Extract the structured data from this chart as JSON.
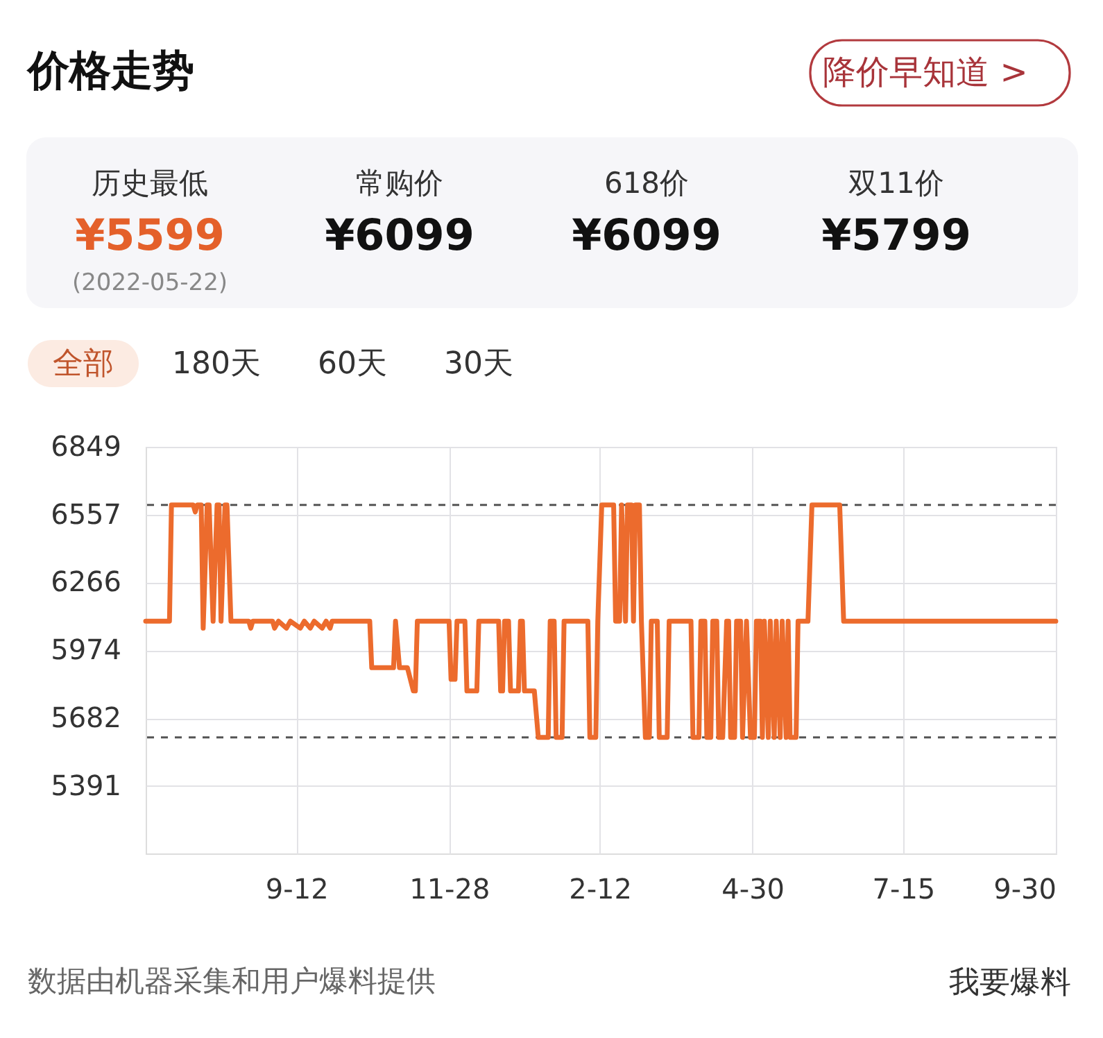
{
  "chart_data": {
    "type": "line",
    "title": "价格走势",
    "color": "#ec6b2d",
    "x": [
      "2021-06-28",
      "2021-07-10",
      "2021-07-11",
      "2021-07-22",
      "2021-07-23",
      "2021-07-24",
      "2021-07-26",
      "2021-07-27",
      "2021-07-29",
      "2021-07-30",
      "2021-08-01",
      "2021-08-03",
      "2021-08-04",
      "2021-08-05",
      "2021-08-07",
      "2021-08-08",
      "2021-08-10",
      "2021-08-19",
      "2021-08-20",
      "2021-08-21",
      "2021-08-31",
      "2021-09-01",
      "2021-09-03",
      "2021-09-07",
      "2021-09-09",
      "2021-09-14",
      "2021-09-16",
      "2021-09-19",
      "2021-09-21",
      "2021-09-25",
      "2021-09-27",
      "2021-09-29",
      "2021-09-30",
      "2021-10-19",
      "2021-10-20",
      "2021-10-31",
      "2021-11-01",
      "2021-11-03",
      "2021-11-07",
      "2021-11-10",
      "2021-11-11",
      "2021-11-12",
      "2021-11-28",
      "2021-11-29",
      "2021-12-01",
      "2021-12-02",
      "2021-12-06",
      "2021-12-07",
      "2021-12-12",
      "2021-12-13",
      "2021-12-23",
      "2021-12-24",
      "2021-12-25",
      "2021-12-26",
      "2021-12-28",
      "2021-12-29",
      "2022-01-02",
      "2022-01-03",
      "2022-01-04",
      "2022-01-05",
      "2022-01-10",
      "2022-01-12",
      "2022-01-17",
      "2022-01-18",
      "2022-01-20",
      "2022-01-21",
      "2022-01-24",
      "2022-01-25",
      "2022-02-06",
      "2022-02-07",
      "2022-02-10",
      "2022-02-11",
      "2022-02-13",
      "2022-02-19",
      "2022-02-20",
      "2022-02-22",
      "2022-02-23",
      "2022-02-25",
      "2022-02-26",
      "2022-02-28",
      "2022-03-01",
      "2022-03-02",
      "2022-03-04",
      "2022-03-05",
      "2022-03-07",
      "2022-03-09",
      "2022-03-10",
      "2022-03-13",
      "2022-03-14",
      "2022-03-18",
      "2022-03-19",
      "2022-03-30",
      "2022-03-31",
      "2022-04-03",
      "2022-04-04",
      "2022-04-06",
      "2022-04-07",
      "2022-04-09",
      "2022-04-10",
      "2022-04-12",
      "2022-04-13",
      "2022-04-15",
      "2022-04-17",
      "2022-04-18",
      "2022-04-19",
      "2022-04-21",
      "2022-04-22",
      "2022-04-24",
      "2022-04-25",
      "2022-04-27",
      "2022-04-29",
      "2022-05-01",
      "2022-05-02",
      "2022-05-04",
      "2022-05-05",
      "2022-05-06",
      "2022-05-08",
      "2022-05-09",
      "2022-05-11",
      "2022-05-12",
      "2022-05-14",
      "2022-05-15",
      "2022-05-17",
      "2022-05-18",
      "2022-05-19",
      "2022-05-22",
      "2022-05-23",
      "2022-05-28",
      "2022-05-30",
      "2022-06-13",
      "2022-06-15",
      "2022-09-30"
    ],
    "values": [
      6099,
      6099,
      6599,
      6599,
      6569,
      6599,
      6599,
      6069,
      6599,
      6599,
      6099,
      6599,
      6599,
      6099,
      6599,
      6599,
      6099,
      6099,
      6069,
      6099,
      6099,
      6069,
      6099,
      6069,
      6099,
      6069,
      6099,
      6069,
      6099,
      6069,
      6099,
      6069,
      6099,
      6099,
      5899,
      5899,
      6099,
      5899,
      5899,
      5799,
      5799,
      6099,
      6099,
      5849,
      5849,
      6099,
      6099,
      5799,
      5799,
      6099,
      6099,
      5799,
      5799,
      6099,
      6099,
      5799,
      5799,
      6099,
      6099,
      5799,
      5799,
      5599,
      5599,
      6099,
      6099,
      5599,
      5599,
      6099,
      6099,
      5599,
      5599,
      6099,
      6599,
      6599,
      6099,
      6099,
      6599,
      6099,
      6599,
      6599,
      6099,
      6599,
      6599,
      6099,
      5599,
      5599,
      6099,
      6099,
      5599,
      5599,
      6099,
      6099,
      5599,
      5599,
      6099,
      6099,
      5599,
      5599,
      6099,
      6099,
      5599,
      5599,
      6099,
      6099,
      5599,
      5599,
      6099,
      6099,
      5599,
      6099,
      5599,
      5599,
      6099,
      6099,
      5599,
      6099,
      5599,
      6099,
      5599,
      6099,
      5599,
      6099,
      5599,
      6099,
      5599,
      5599,
      6099,
      6099,
      6599,
      6599,
      6099,
      6099
    ],
    "xlim": [
      "2021-06-28",
      "2022-09-30"
    ],
    "xticks": [
      {
        "value": "2021-09-12",
        "label": "9-12"
      },
      {
        "value": "2021-11-28",
        "label": "11-28"
      },
      {
        "value": "2022-02-12",
        "label": "2-12"
      },
      {
        "value": "2022-04-30",
        "label": "4-30"
      },
      {
        "value": "2022-07-15",
        "label": "7-15"
      },
      {
        "value": "2022-09-30",
        "label": "9-30"
      }
    ],
    "ylim": [
      5100,
      6849
    ],
    "yticks": [
      5391,
      5682,
      5974,
      6266,
      6557,
      6849
    ],
    "grid": true,
    "ref_lines": [
      {
        "axis": "y",
        "value": 6599,
        "color": "#555555",
        "line_style": "dashed"
      },
      {
        "axis": "y",
        "value": 5599,
        "color": "#555555",
        "line_style": "dashed"
      }
    ],
    "annotations": [
      "降价早知道 >",
      "历史最低",
      "¥5599",
      "(2022-05-22)",
      "常购价",
      "¥6099",
      "618价",
      "¥6099",
      "双11价",
      "¥5799",
      "全部",
      "180天",
      "60天",
      "30天",
      "数据由机器采集和用户爆料提供",
      "我要爆料"
    ]
  }
}
